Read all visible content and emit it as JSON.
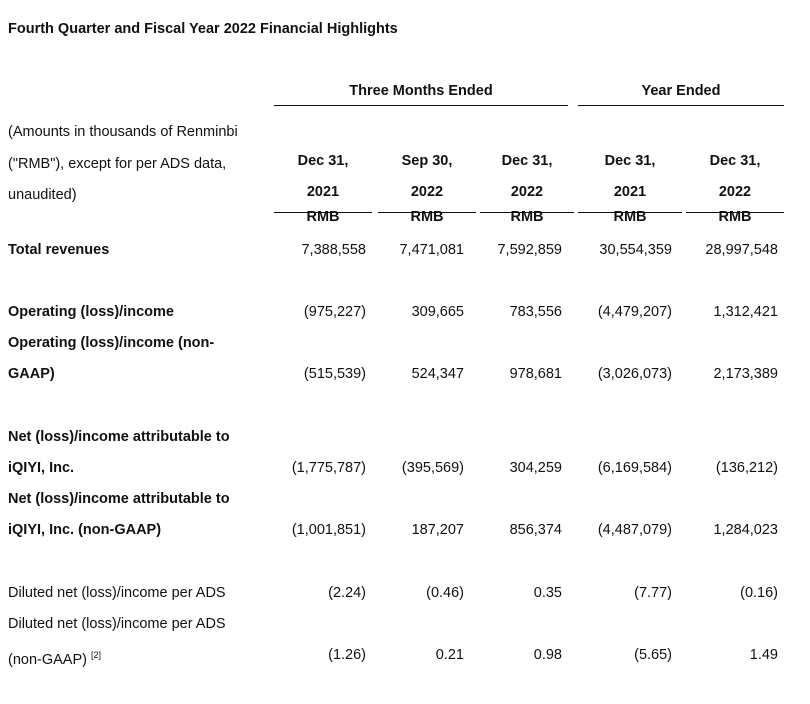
{
  "title": "Fourth Quarter and Fiscal Year 2022 Financial Highlights",
  "groups": {
    "three_months": "Three Months Ended",
    "year": "Year Ended"
  },
  "note": "(Amounts in thousands of Renminbi (\"RMB\"), except for per ADS data, unaudited)",
  "columns": [
    {
      "line1": "Dec 31,",
      "line2": "2021",
      "unit": "RMB"
    },
    {
      "line1": "Sep 30,",
      "line2": "2022",
      "unit": "RMB"
    },
    {
      "line1": "Dec 31,",
      "line2": "2022",
      "unit": "RMB"
    },
    {
      "line1": "Dec 31,",
      "line2": "2021",
      "unit": "RMB"
    },
    {
      "line1": "Dec 31,",
      "line2": "2022",
      "unit": "RMB"
    }
  ],
  "rows": [
    {
      "label": "Total revenues",
      "values": [
        "7,388,558",
        "7,471,081",
        "7,592,859",
        "30,554,359",
        "28,997,548"
      ]
    },
    {
      "label": "Operating (loss)/income",
      "values": [
        "(975,227)",
        "309,665",
        "783,556",
        "(4,479,207)",
        "1,312,421"
      ]
    },
    {
      "label": "Operating (loss)/income (non-GAAP)",
      "values": [
        "(515,539)",
        "524,347",
        "978,681",
        "(3,026,073)",
        "2,173,389"
      ]
    },
    {
      "label": "Net (loss)/income attributable to iQIYI, Inc.",
      "values": [
        "(1,775,787)",
        "(395,569)",
        "304,259",
        "(6,169,584)",
        "(136,212)"
      ]
    },
    {
      "label": "Net (loss)/income attributable to iQIYI, Inc. (non-GAAP)",
      "values": [
        "(1,001,851)",
        "187,207",
        "856,374",
        "(4,487,079)",
        "1,284,023"
      ]
    },
    {
      "label": "Diluted net (loss)/income per ADS",
      "values": [
        "(2.24)",
        "(0.46)",
        "0.35",
        "(7.77)",
        "(0.16)"
      ]
    },
    {
      "label": "Diluted net (loss)/income per ADS (non-GAAP)",
      "footnote": "[2]",
      "values": [
        "(1.26)",
        "0.21",
        "0.98",
        "(5.65)",
        "1.49"
      ]
    }
  ]
}
